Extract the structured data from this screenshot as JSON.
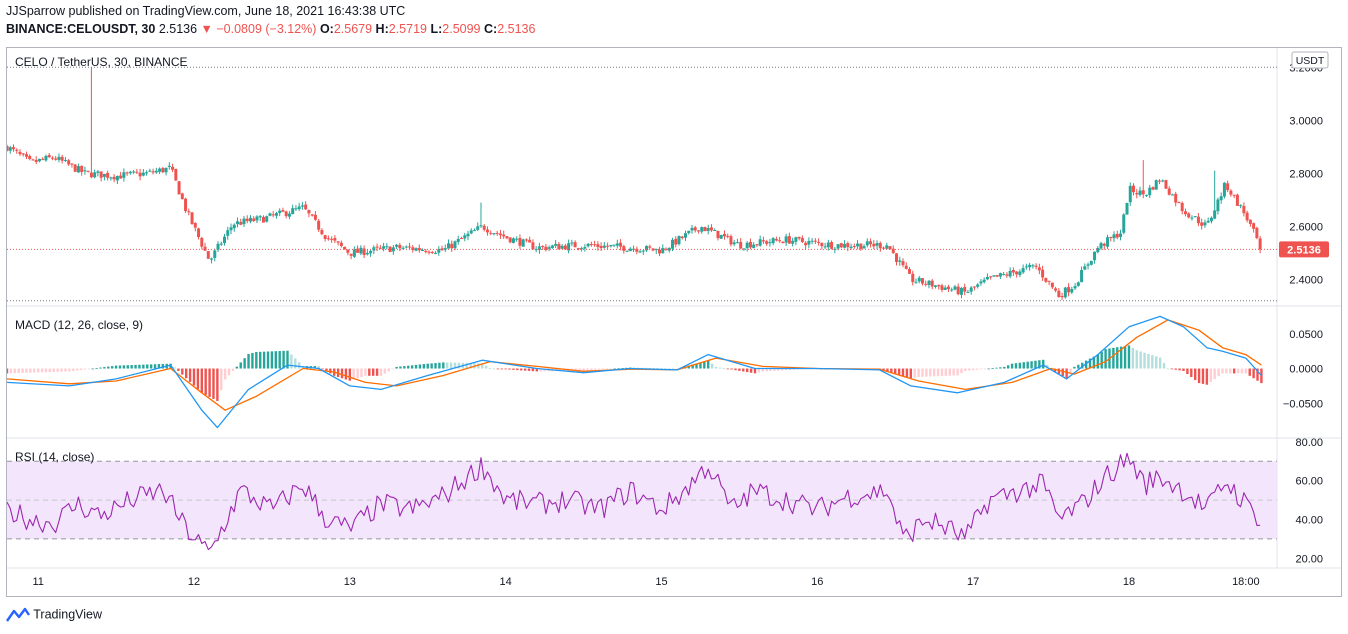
{
  "header": {
    "line1": "JJSparrow published on TradingView.com, June 18, 2021 16:43:38 UTC",
    "symbol": "BINANCE:CELOUSDT, 30",
    "last": "2.5136",
    "change": "▼ −0.0809 (−3.12%)",
    "o_label": "O:",
    "o_value": "2.5679",
    "h_label": "H:",
    "h_value": "2.5719",
    "l_label": "L:",
    "l_value": "2.5099",
    "c_label": "C:",
    "c_value": "2.5136"
  },
  "footer": {
    "brand": "TradingView"
  },
  "colors": {
    "up": "#26a69a",
    "down": "#ef5350",
    "macd": "#2196f3",
    "signal": "#ff6d00",
    "rsi": "#9c27b0",
    "rsi_band": "#f3e5fb"
  },
  "chart_data": [
    {
      "type": "candlestick",
      "title": "CELO / TetherUS, 30, BINANCE",
      "currency": "USDT",
      "ylim": [
        2.3,
        3.25
      ],
      "y_ticks": [
        "3.2000",
        "3.0000",
        "2.8000",
        "2.6000",
        "2.4000"
      ],
      "last_price": 2.5136,
      "last_price_label": "2.5136",
      "x_ticks": [
        "11",
        "12",
        "13",
        "14",
        "15",
        "16",
        "17",
        "18",
        "18:00"
      ],
      "x_tick_days": [
        11,
        12,
        13,
        14,
        15,
        16,
        17,
        18,
        18.75
      ],
      "x_range_days": [
        10.8,
        18.95
      ],
      "period_minutes": 30,
      "close_path": [
        [
          10.8,
          2.9
        ],
        [
          10.95,
          2.84
        ],
        [
          11.1,
          2.86
        ],
        [
          11.3,
          2.8
        ],
        [
          11.5,
          2.79
        ],
        [
          11.7,
          2.8
        ],
        [
          11.85,
          2.82
        ],
        [
          11.95,
          2.66
        ],
        [
          12.1,
          2.47
        ],
        [
          12.25,
          2.61
        ],
        [
          12.45,
          2.63
        ],
        [
          12.7,
          2.67
        ],
        [
          12.85,
          2.56
        ],
        [
          13.0,
          2.5
        ],
        [
          13.3,
          2.52
        ],
        [
          13.6,
          2.51
        ],
        [
          13.85,
          2.6
        ],
        [
          14.0,
          2.56
        ],
        [
          14.2,
          2.52
        ],
        [
          14.5,
          2.53
        ],
        [
          14.8,
          2.52
        ],
        [
          15.0,
          2.51
        ],
        [
          15.25,
          2.6
        ],
        [
          15.5,
          2.53
        ],
        [
          15.8,
          2.55
        ],
        [
          16.1,
          2.53
        ],
        [
          16.45,
          2.53
        ],
        [
          16.6,
          2.4
        ],
        [
          16.95,
          2.35
        ],
        [
          17.1,
          2.4
        ],
        [
          17.4,
          2.45
        ],
        [
          17.55,
          2.34
        ],
        [
          17.65,
          2.38
        ],
        [
          17.8,
          2.52
        ],
        [
          17.95,
          2.58
        ],
        [
          18.0,
          2.74
        ],
        [
          18.1,
          2.72
        ],
        [
          18.2,
          2.78
        ],
        [
          18.35,
          2.66
        ],
        [
          18.5,
          2.6
        ],
        [
          18.62,
          2.76
        ],
        [
          18.75,
          2.64
        ],
        [
          18.85,
          2.5136
        ]
      ],
      "spike_highs": [
        [
          11.35,
          3.2
        ],
        [
          13.85,
          2.69
        ],
        [
          18.1,
          2.85
        ],
        [
          18.55,
          2.81
        ]
      ]
    },
    {
      "type": "line",
      "title": "MACD (12, 26, close, 9)",
      "ylim": [
        -0.1,
        0.09
      ],
      "y_ticks": [
        "0.0500",
        "0.0000",
        "−0.0500"
      ],
      "y_tick_values": [
        0.05,
        0.0,
        -0.05
      ],
      "series": [
        {
          "key": "macd",
          "points": [
            [
              10.8,
              -0.02
            ],
            [
              11.2,
              -0.025
            ],
            [
              11.5,
              -0.015
            ],
            [
              11.85,
              0.005
            ],
            [
              12.05,
              -0.06
            ],
            [
              12.15,
              -0.085
            ],
            [
              12.35,
              -0.03
            ],
            [
              12.6,
              0.005
            ],
            [
              12.8,
              0.0
            ],
            [
              13.0,
              -0.025
            ],
            [
              13.2,
              -0.03
            ],
            [
              13.5,
              -0.01
            ],
            [
              13.85,
              0.012
            ],
            [
              14.2,
              0.0
            ],
            [
              14.5,
              -0.006
            ],
            [
              14.8,
              0.0
            ],
            [
              15.1,
              -0.002
            ],
            [
              15.3,
              0.02
            ],
            [
              15.6,
              0.0
            ],
            [
              16.0,
              0.0
            ],
            [
              16.4,
              -0.002
            ],
            [
              16.6,
              -0.025
            ],
            [
              16.9,
              -0.035
            ],
            [
              17.2,
              -0.02
            ],
            [
              17.45,
              0.005
            ],
            [
              17.6,
              -0.015
            ],
            [
              17.8,
              0.02
            ],
            [
              18.0,
              0.06
            ],
            [
              18.2,
              0.075
            ],
            [
              18.35,
              0.06
            ],
            [
              18.5,
              0.03
            ],
            [
              18.6,
              0.025
            ],
            [
              18.75,
              0.015
            ],
            [
              18.85,
              -0.01
            ]
          ]
        },
        {
          "key": "signal",
          "points": [
            [
              10.8,
              -0.015
            ],
            [
              11.2,
              -0.022
            ],
            [
              11.5,
              -0.018
            ],
            [
              11.85,
              0.0
            ],
            [
              12.05,
              -0.035
            ],
            [
              12.2,
              -0.06
            ],
            [
              12.4,
              -0.04
            ],
            [
              12.7,
              0.0
            ],
            [
              12.9,
              -0.005
            ],
            [
              13.1,
              -0.02
            ],
            [
              13.3,
              -0.025
            ],
            [
              13.6,
              -0.01
            ],
            [
              13.9,
              0.01
            ],
            [
              14.2,
              0.003
            ],
            [
              14.5,
              -0.004
            ],
            [
              14.8,
              -0.001
            ],
            [
              15.1,
              -0.002
            ],
            [
              15.35,
              0.015
            ],
            [
              15.65,
              0.003
            ],
            [
              16.0,
              0.0
            ],
            [
              16.4,
              -0.001
            ],
            [
              16.65,
              -0.018
            ],
            [
              16.95,
              -0.03
            ],
            [
              17.25,
              -0.02
            ],
            [
              17.5,
              0.0
            ],
            [
              17.65,
              -0.008
            ],
            [
              17.85,
              0.01
            ],
            [
              18.05,
              0.045
            ],
            [
              18.25,
              0.07
            ],
            [
              18.45,
              0.055
            ],
            [
              18.6,
              0.03
            ],
            [
              18.75,
              0.02
            ],
            [
              18.85,
              0.005
            ]
          ]
        }
      ]
    },
    {
      "type": "line",
      "title": "RSI (14, close)",
      "ylim": [
        15,
        82
      ],
      "y_ticks": [
        "80.00",
        "60.00",
        "40.00",
        "20.00"
      ],
      "y_tick_values": [
        80,
        60,
        40,
        20
      ],
      "band": [
        30,
        70
      ],
      "mid": 50,
      "series": [
        {
          "key": "rsi",
          "points": [
            [
              10.8,
              45
            ],
            [
              10.95,
              40
            ],
            [
              11.1,
              38
            ],
            [
              11.25,
              48
            ],
            [
              11.4,
              42
            ],
            [
              11.6,
              50
            ],
            [
              11.8,
              55
            ],
            [
              11.95,
              35
            ],
            [
              12.1,
              22
            ],
            [
              12.3,
              55
            ],
            [
              12.5,
              45
            ],
            [
              12.7,
              58
            ],
            [
              12.85,
              40
            ],
            [
              13.0,
              35
            ],
            [
              13.2,
              48
            ],
            [
              13.4,
              45
            ],
            [
              13.6,
              52
            ],
            [
              13.85,
              68
            ],
            [
              14.0,
              50
            ],
            [
              14.2,
              48
            ],
            [
              14.4,
              50
            ],
            [
              14.6,
              45
            ],
            [
              14.8,
              55
            ],
            [
              15.0,
              45
            ],
            [
              15.15,
              55
            ],
            [
              15.3,
              68
            ],
            [
              15.45,
              45
            ],
            [
              15.6,
              55
            ],
            [
              15.8,
              50
            ],
            [
              16.0,
              45
            ],
            [
              16.2,
              52
            ],
            [
              16.45,
              55
            ],
            [
              16.55,
              30
            ],
            [
              16.7,
              40
            ],
            [
              16.85,
              35
            ],
            [
              16.95,
              30
            ],
            [
              17.1,
              50
            ],
            [
              17.3,
              55
            ],
            [
              17.45,
              58
            ],
            [
              17.55,
              40
            ],
            [
              17.7,
              48
            ],
            [
              17.85,
              62
            ],
            [
              18.0,
              72
            ],
            [
              18.1,
              58
            ],
            [
              18.2,
              62
            ],
            [
              18.35,
              55
            ],
            [
              18.5,
              45
            ],
            [
              18.62,
              60
            ],
            [
              18.75,
              48
            ],
            [
              18.85,
              40
            ]
          ]
        }
      ]
    }
  ]
}
